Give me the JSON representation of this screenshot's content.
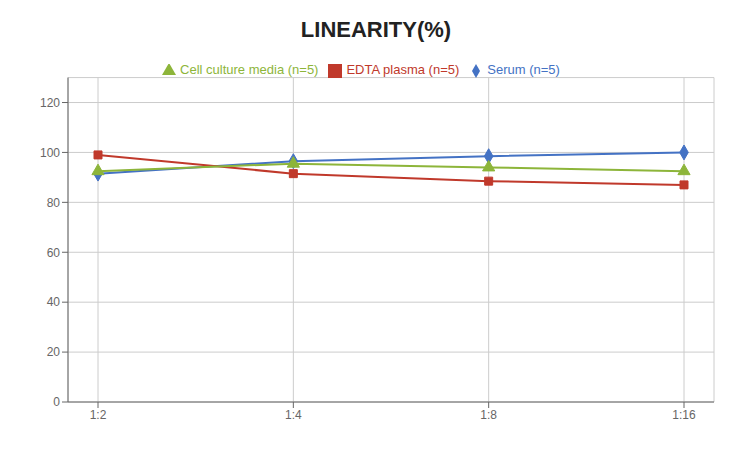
{
  "chart_data": {
    "type": "line",
    "title": "LINEARITY(%)",
    "categories": [
      "1:2",
      "1:4",
      "1:8",
      "1:16"
    ],
    "series": [
      {
        "name": "Serum (n=5)",
        "color": "#4472C4",
        "marker": "diamond",
        "values": [
          91.5,
          96.5,
          98.5,
          100.0
        ]
      },
      {
        "name": "EDTA plasma (n=5)",
        "color": "#C0392B",
        "marker": "square",
        "values": [
          99.0,
          91.5,
          88.5,
          87.0
        ]
      },
      {
        "name": "Cell culture media (n=5)",
        "color": "#8DB53A",
        "marker": "triangle",
        "values": [
          92.5,
          95.5,
          94.0,
          92.5
        ]
      }
    ],
    "ylim": [
      0,
      130
    ],
    "yticks": [
      0,
      20,
      40,
      60,
      80,
      100,
      120
    ],
    "grid": true,
    "legend": "top"
  }
}
